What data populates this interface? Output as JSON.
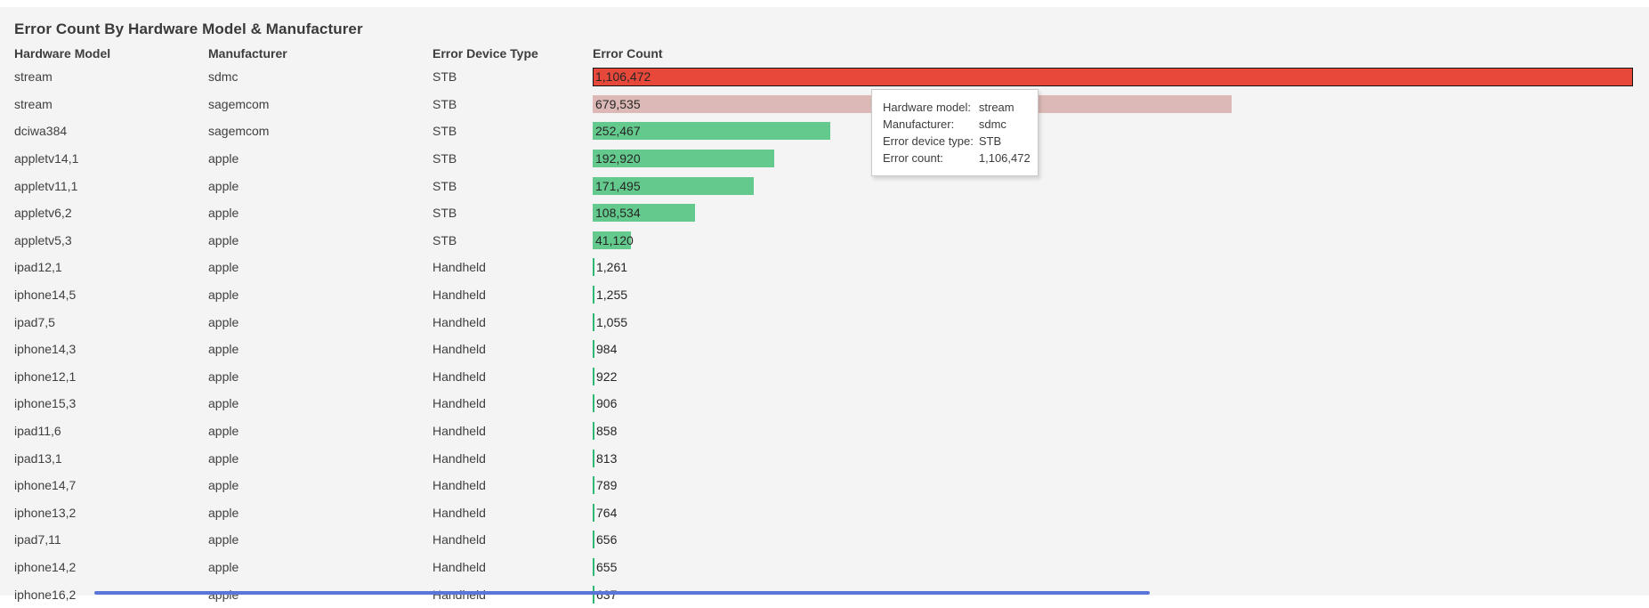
{
  "page_title": "Error Count By Hardware Model & Manufacturer",
  "colors": {
    "background": "#f4f4f5",
    "highlight_bar": "#e8483a",
    "muted_bar": "#dcb9b6",
    "bar": "#63c98c",
    "tiny_bar": "#2eb873",
    "scrollbar": "#5b76d9"
  },
  "tooltip": {
    "rows": [
      {
        "label": "Hardware model:",
        "value": "stream"
      },
      {
        "label": "Manufacturer:",
        "value": "sdmc"
      },
      {
        "label": "Error device type:",
        "value": "STB"
      },
      {
        "label": "Error count:",
        "value": "1,106,472"
      }
    ]
  },
  "chart_data": {
    "type": "bar",
    "orientation": "horizontal",
    "title": "Error Count By Hardware Model & Manufacturer",
    "columns": [
      "Hardware Model",
      "Manufacturer",
      "Error Device Type",
      "Error Count"
    ],
    "xlim": [
      0,
      1106472
    ],
    "grid": false,
    "legend": "none",
    "highlighted_row_index": 0,
    "muted_row_index": 1,
    "rows": [
      {
        "hardware_model": "stream",
        "manufacturer": "sdmc",
        "error_device_type": "STB",
        "error_count": 1106472,
        "error_count_label": "1,106,472",
        "state": "highlight"
      },
      {
        "hardware_model": "stream",
        "manufacturer": "sagemcom",
        "error_device_type": "STB",
        "error_count": 679535,
        "error_count_label": "679,535",
        "state": "muted"
      },
      {
        "hardware_model": "dciwa384",
        "manufacturer": "sagemcom",
        "error_device_type": "STB",
        "error_count": 252467,
        "error_count_label": "252,467",
        "state": "normal"
      },
      {
        "hardware_model": "appletv14,1",
        "manufacturer": "apple",
        "error_device_type": "STB",
        "error_count": 192920,
        "error_count_label": "192,920",
        "state": "normal"
      },
      {
        "hardware_model": "appletv11,1",
        "manufacturer": "apple",
        "error_device_type": "STB",
        "error_count": 171495,
        "error_count_label": "171,495",
        "state": "normal"
      },
      {
        "hardware_model": "appletv6,2",
        "manufacturer": "apple",
        "error_device_type": "STB",
        "error_count": 108534,
        "error_count_label": "108,534",
        "state": "normal"
      },
      {
        "hardware_model": "appletv5,3",
        "manufacturer": "apple",
        "error_device_type": "STB",
        "error_count": 41120,
        "error_count_label": "41,120",
        "state": "normal"
      },
      {
        "hardware_model": "ipad12,1",
        "manufacturer": "apple",
        "error_device_type": "Handheld",
        "error_count": 1261,
        "error_count_label": "1,261",
        "state": "normal"
      },
      {
        "hardware_model": "iphone14,5",
        "manufacturer": "apple",
        "error_device_type": "Handheld",
        "error_count": 1255,
        "error_count_label": "1,255",
        "state": "normal"
      },
      {
        "hardware_model": "ipad7,5",
        "manufacturer": "apple",
        "error_device_type": "Handheld",
        "error_count": 1055,
        "error_count_label": "1,055",
        "state": "normal"
      },
      {
        "hardware_model": "iphone14,3",
        "manufacturer": "apple",
        "error_device_type": "Handheld",
        "error_count": 984,
        "error_count_label": "984",
        "state": "normal"
      },
      {
        "hardware_model": "iphone12,1",
        "manufacturer": "apple",
        "error_device_type": "Handheld",
        "error_count": 922,
        "error_count_label": "922",
        "state": "normal"
      },
      {
        "hardware_model": "iphone15,3",
        "manufacturer": "apple",
        "error_device_type": "Handheld",
        "error_count": 906,
        "error_count_label": "906",
        "state": "normal"
      },
      {
        "hardware_model": "ipad11,6",
        "manufacturer": "apple",
        "error_device_type": "Handheld",
        "error_count": 858,
        "error_count_label": "858",
        "state": "normal"
      },
      {
        "hardware_model": "ipad13,1",
        "manufacturer": "apple",
        "error_device_type": "Handheld",
        "error_count": 813,
        "error_count_label": "813",
        "state": "normal"
      },
      {
        "hardware_model": "iphone14,7",
        "manufacturer": "apple",
        "error_device_type": "Handheld",
        "error_count": 789,
        "error_count_label": "789",
        "state": "normal"
      },
      {
        "hardware_model": "iphone13,2",
        "manufacturer": "apple",
        "error_device_type": "Handheld",
        "error_count": 764,
        "error_count_label": "764",
        "state": "normal"
      },
      {
        "hardware_model": "ipad7,11",
        "manufacturer": "apple",
        "error_device_type": "Handheld",
        "error_count": 656,
        "error_count_label": "656",
        "state": "normal"
      },
      {
        "hardware_model": "iphone14,2",
        "manufacturer": "apple",
        "error_device_type": "Handheld",
        "error_count": 655,
        "error_count_label": "655",
        "state": "normal"
      },
      {
        "hardware_model": "iphone16,2",
        "manufacturer": "apple",
        "error_device_type": "Handheld",
        "error_count": 637,
        "error_count_label": "637",
        "state": "normal"
      }
    ]
  }
}
